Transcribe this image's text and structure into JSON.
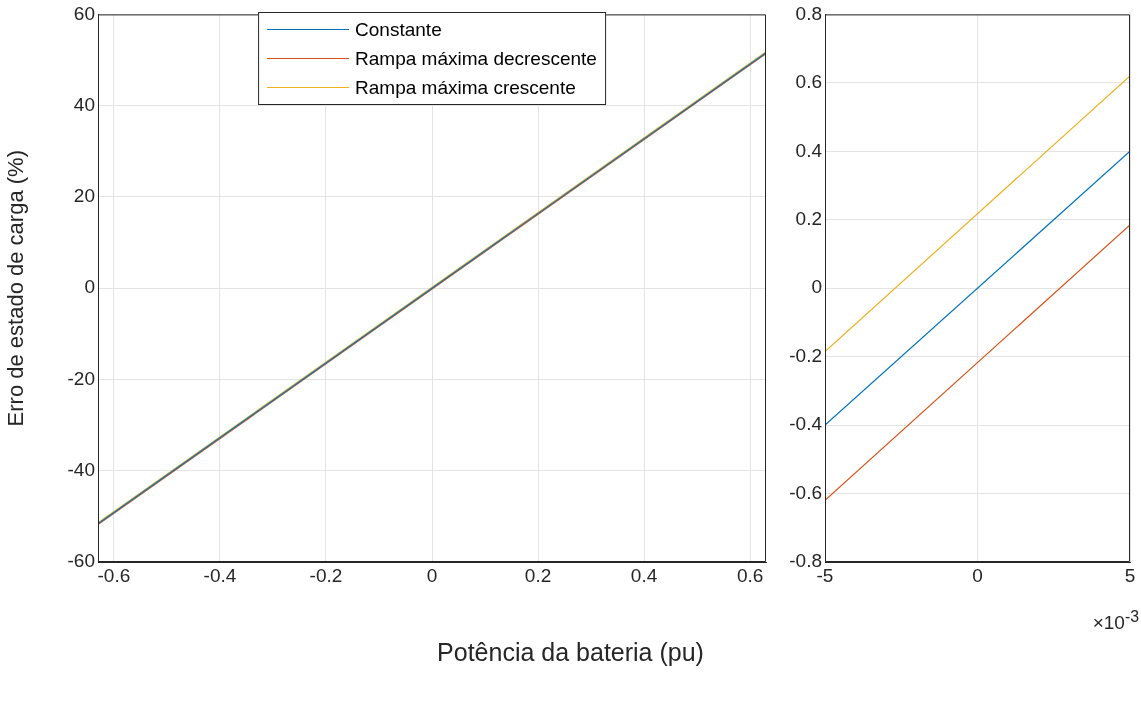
{
  "chart_data": [
    {
      "type": "line",
      "xlabel": "Potência da bateria (pu)",
      "ylabel": "Erro de estado de carga (%)",
      "xlim": [
        -0.63,
        0.63
      ],
      "xticks": [
        -0.6,
        -0.4,
        -0.2,
        0,
        0.2,
        0.4,
        0.6
      ],
      "ylim": [
        -60,
        60
      ],
      "yticks": [
        -60,
        -40,
        -20,
        0,
        20,
        40,
        60
      ],
      "grid": true,
      "legend": "top",
      "series": [
        {
          "name": "Constante",
          "color": "#0072bd",
          "x": [
            -0.63,
            0.63
          ],
          "values": [
            -51.6,
            51.6
          ]
        },
        {
          "name": "Rampa máxima decrescente",
          "color": "#d95319",
          "x": [
            -0.63,
            0.63
          ],
          "values": [
            -51.8,
            51.4
          ]
        },
        {
          "name": "Rampa máxima crescente",
          "color": "#edb120",
          "x": [
            -0.63,
            0.63
          ],
          "values": [
            -51.4,
            51.8
          ]
        }
      ]
    },
    {
      "type": "line",
      "xlim": [
        -5,
        5
      ],
      "xticks": [
        -5,
        0,
        5
      ],
      "ylim": [
        -0.8,
        0.8
      ],
      "yticks": [
        -0.8,
        -0.6,
        -0.4,
        -0.2,
        0,
        0.2,
        0.4,
        0.6,
        0.8
      ],
      "grid": true,
      "annotations": [
        "×10$^{-3}$"
      ],
      "series": [
        {
          "color": "#0072bd",
          "x": [
            -5,
            5
          ],
          "values": [
            -0.4,
            0.4
          ]
        },
        {
          "color": "#d95319",
          "x": [
            -5,
            5
          ],
          "values": [
            -0.62,
            0.185
          ]
        },
        {
          "color": "#edb120",
          "x": [
            -5,
            5
          ],
          "values": [
            -0.185,
            0.62
          ]
        }
      ]
    }
  ]
}
